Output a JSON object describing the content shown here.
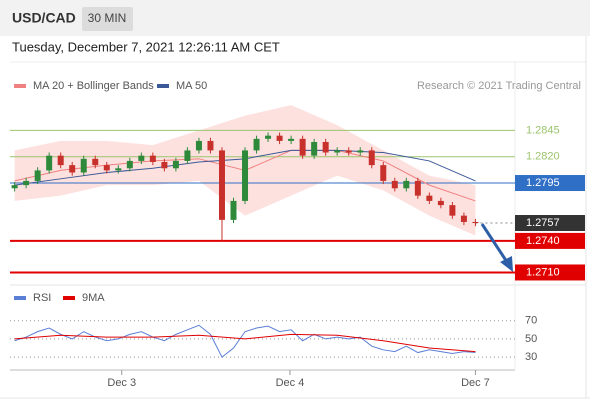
{
  "header": {
    "symbol": "USD/CAD",
    "interval": "30 MIN",
    "timestamp": "Tuesday, December 7, 2021 12:26:11 AM CET"
  },
  "chart_data": [
    {
      "type": "candlestick",
      "credit": "Research © 2021 Trading Central",
      "x": [
        0,
        1,
        2,
        3,
        4,
        5,
        6,
        7,
        8,
        9,
        10,
        11,
        12,
        13,
        14,
        15,
        16,
        17,
        18,
        19,
        20,
        21,
        22,
        23,
        24,
        25,
        26,
        27,
        28,
        29,
        30,
        31,
        32,
        33,
        34,
        35,
        36,
        37,
        38,
        39,
        40
      ],
      "open": [
        1.279,
        1.2793,
        1.2797,
        1.2807,
        1.2821,
        1.2812,
        1.2805,
        1.2818,
        1.2812,
        1.2807,
        1.2809,
        1.2816,
        1.2821,
        1.2815,
        1.2809,
        1.2816,
        1.2826,
        1.2835,
        1.2826,
        1.276,
        1.2778,
        1.2826,
        1.2837,
        1.284,
        1.2835,
        1.2837,
        1.2821,
        1.2834,
        1.2824,
        1.2826,
        1.2824,
        1.2826,
        1.2812,
        1.2797,
        1.279,
        1.2797,
        1.2783,
        1.2778,
        1.2774,
        1.2764,
        1.2758
      ],
      "high": [
        1.2796,
        1.28,
        1.281,
        1.2824,
        1.2824,
        1.2815,
        1.2821,
        1.2821,
        1.2815,
        1.2812,
        1.2819,
        1.2824,
        1.2824,
        1.2818,
        1.2819,
        1.2829,
        1.2838,
        1.2838,
        1.2829,
        1.2781,
        1.2829,
        1.284,
        1.2843,
        1.2843,
        1.284,
        1.284,
        1.2837,
        1.2837,
        1.2829,
        1.2829,
        1.2829,
        1.2829,
        1.2815,
        1.28,
        1.28,
        1.28,
        1.2786,
        1.2781,
        1.2777,
        1.2767,
        1.2761
      ],
      "low": [
        1.2787,
        1.279,
        1.2794,
        1.2804,
        1.2809,
        1.2802,
        1.2802,
        1.2809,
        1.2804,
        1.2804,
        1.2806,
        1.2813,
        1.2812,
        1.2806,
        1.2806,
        1.2813,
        1.2823,
        1.2823,
        1.274,
        1.2757,
        1.2775,
        1.2823,
        1.2834,
        1.2832,
        1.2832,
        1.2818,
        1.2818,
        1.2821,
        1.2821,
        1.2821,
        1.2821,
        1.2809,
        1.2794,
        1.2787,
        1.2787,
        1.278,
        1.2775,
        1.2771,
        1.2761,
        1.2755,
        1.2754
      ],
      "close": [
        1.2793,
        1.2797,
        1.2807,
        1.2821,
        1.2812,
        1.2805,
        1.2818,
        1.2812,
        1.2807,
        1.2809,
        1.2816,
        1.2821,
        1.2815,
        1.2809,
        1.2816,
        1.2826,
        1.2835,
        1.2826,
        1.276,
        1.2778,
        1.2826,
        1.2837,
        1.284,
        1.2835,
        1.2837,
        1.2821,
        1.2834,
        1.2824,
        1.2826,
        1.2824,
        1.2826,
        1.2812,
        1.2797,
        1.279,
        1.2797,
        1.2783,
        1.2778,
        1.2774,
        1.2764,
        1.2758,
        1.2757
      ],
      "up_color": "#2e8a3a",
      "down_color": "#c8312b",
      "overlays": [
        {
          "name": "MA 20 + Bollinger Bands",
          "color": "#f08080",
          "band_color": "#fde1df",
          "x": [
            0,
            4,
            8,
            12,
            16,
            20,
            24,
            28,
            32,
            36,
            40
          ],
          "upper": [
            1.2826,
            1.2835,
            1.2835,
            1.2831,
            1.2845,
            1.2859,
            1.2869,
            1.285,
            1.2826,
            1.2802,
            1.2793
          ],
          "lower": [
            1.2778,
            1.2783,
            1.2793,
            1.2793,
            1.2797,
            1.2764,
            1.2783,
            1.2802,
            1.2788,
            1.2764,
            1.2745
          ],
          "values": [
            1.2797,
            1.2807,
            1.2812,
            1.2816,
            1.2818,
            1.2807,
            1.2826,
            1.2826,
            1.2816,
            1.2793,
            1.2778
          ]
        },
        {
          "name": "MA 50",
          "color": "#3b5998",
          "x": [
            0,
            4,
            8,
            12,
            16,
            20,
            24,
            28,
            32,
            36,
            40
          ],
          "values": [
            1.2793,
            1.2799,
            1.2805,
            1.2809,
            1.2815,
            1.2818,
            1.2826,
            1.2826,
            1.2824,
            1.2816,
            1.2797
          ]
        }
      ],
      "levels": {
        "values": [
          1.2845,
          1.282,
          1.2795,
          1.2757,
          1.274,
          1.271
        ],
        "value_labels": [
          "1.2845",
          "1.2820",
          "1.2795",
          "1.2757",
          "1.2740",
          "1.2710"
        ],
        "colors": [
          "#9cc46e",
          "#9cc46e",
          "#2f6fc6",
          "#333333",
          "#e00000",
          "#e00000"
        ],
        "boxed": [
          false,
          false,
          true,
          true,
          true,
          true
        ],
        "line_styles": [
          "solid",
          "solid",
          "solid",
          "dotted",
          "solid",
          "solid"
        ],
        "line_widths": [
          1,
          1,
          1,
          1,
          2,
          2
        ]
      },
      "xlim": [
        -0.4,
        43
      ],
      "ylim": [
        1.27,
        1.291
      ]
    },
    {
      "type": "line",
      "series": [
        {
          "name": "RSI",
          "color": "#5b7fd6",
          "x": [
            0,
            1,
            2,
            3,
            4,
            5,
            6,
            7,
            8,
            9,
            10,
            11,
            12,
            13,
            14,
            15,
            16,
            17,
            18,
            19,
            20,
            21,
            22,
            23,
            24,
            25,
            26,
            27,
            28,
            29,
            30,
            31,
            32,
            33,
            34,
            35,
            36,
            37,
            38,
            39,
            40
          ],
          "values": [
            48,
            52,
            58,
            62,
            55,
            50,
            58,
            52,
            48,
            50,
            55,
            58,
            52,
            48,
            55,
            60,
            65,
            55,
            30,
            40,
            58,
            62,
            64,
            58,
            60,
            48,
            55,
            50,
            52,
            50,
            52,
            42,
            38,
            36,
            42,
            35,
            38,
            36,
            34,
            36,
            35
          ]
        },
        {
          "name": "9MA",
          "color": "#e00000",
          "x": [
            0,
            4,
            8,
            12,
            16,
            20,
            24,
            28,
            32,
            36,
            40
          ],
          "values": [
            50,
            54,
            52,
            52,
            54,
            50,
            55,
            54,
            48,
            40,
            36
          ]
        }
      ],
      "xlim": [
        -0.4,
        43
      ],
      "ylim": [
        18,
        84
      ],
      "yticks": [
        30,
        50,
        70
      ],
      "xticks": [
        {
          "value": 9.3,
          "label": "Dec 3"
        },
        {
          "value": 23.9,
          "label": "Dec 4"
        },
        {
          "value": 40,
          "label": "Dec 7"
        }
      ]
    }
  ]
}
